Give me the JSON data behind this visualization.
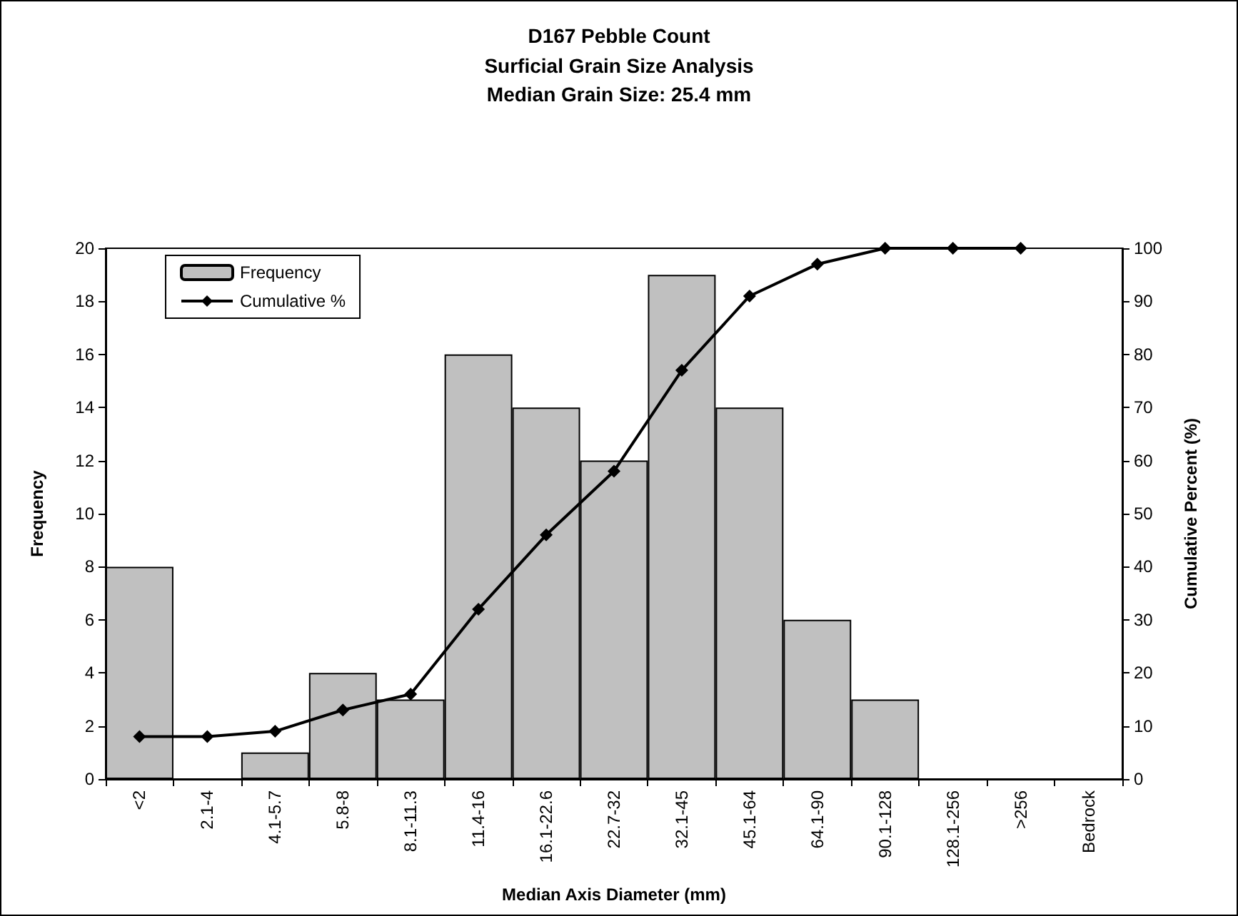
{
  "chart_data": {
    "type": "bar",
    "title": "D167 Pebble Count",
    "subtitle": "Surficial Grain Size Analysis\nMedian Grain Size: 25.4 mm",
    "xlabel": "Median Axis Diameter (mm)",
    "ylabel": "Frequency",
    "y2label": "Cumulative Percent (%)",
    "categories": [
      "<2",
      "2.1-4",
      "4.1-5.7",
      "5.8-8",
      "8.1-11.3",
      "11.4-16",
      "16.1-22.6",
      "22.7-32",
      "32.1-45",
      "45.1-64",
      "64.1-90",
      "90.1-128",
      "128.1-256",
      ">256",
      "Bedrock"
    ],
    "series": [
      {
        "name": "Frequency",
        "color": "#c0c0c0",
        "values": [
          8,
          0,
          1,
          4,
          3,
          16,
          14,
          12,
          19,
          14,
          6,
          3,
          0,
          0,
          0
        ]
      },
      {
        "name": "Cumulative %",
        "type": "line",
        "axis": "y2",
        "color": "#000000",
        "values": [
          8,
          8,
          9,
          13,
          16,
          32,
          46,
          58,
          77,
          91,
          97,
          100,
          100,
          100,
          null
        ]
      }
    ],
    "ylim": [
      0,
      20
    ],
    "yticks": [
      0,
      2,
      4,
      6,
      8,
      10,
      12,
      14,
      16,
      18,
      20
    ],
    "y2lim": [
      0,
      100
    ],
    "y2ticks": [
      0,
      10,
      20,
      30,
      40,
      50,
      60,
      70,
      80,
      90,
      100
    ],
    "grid": false,
    "legend": "top left",
    "marker": "diamond",
    "line_style": "solid"
  }
}
